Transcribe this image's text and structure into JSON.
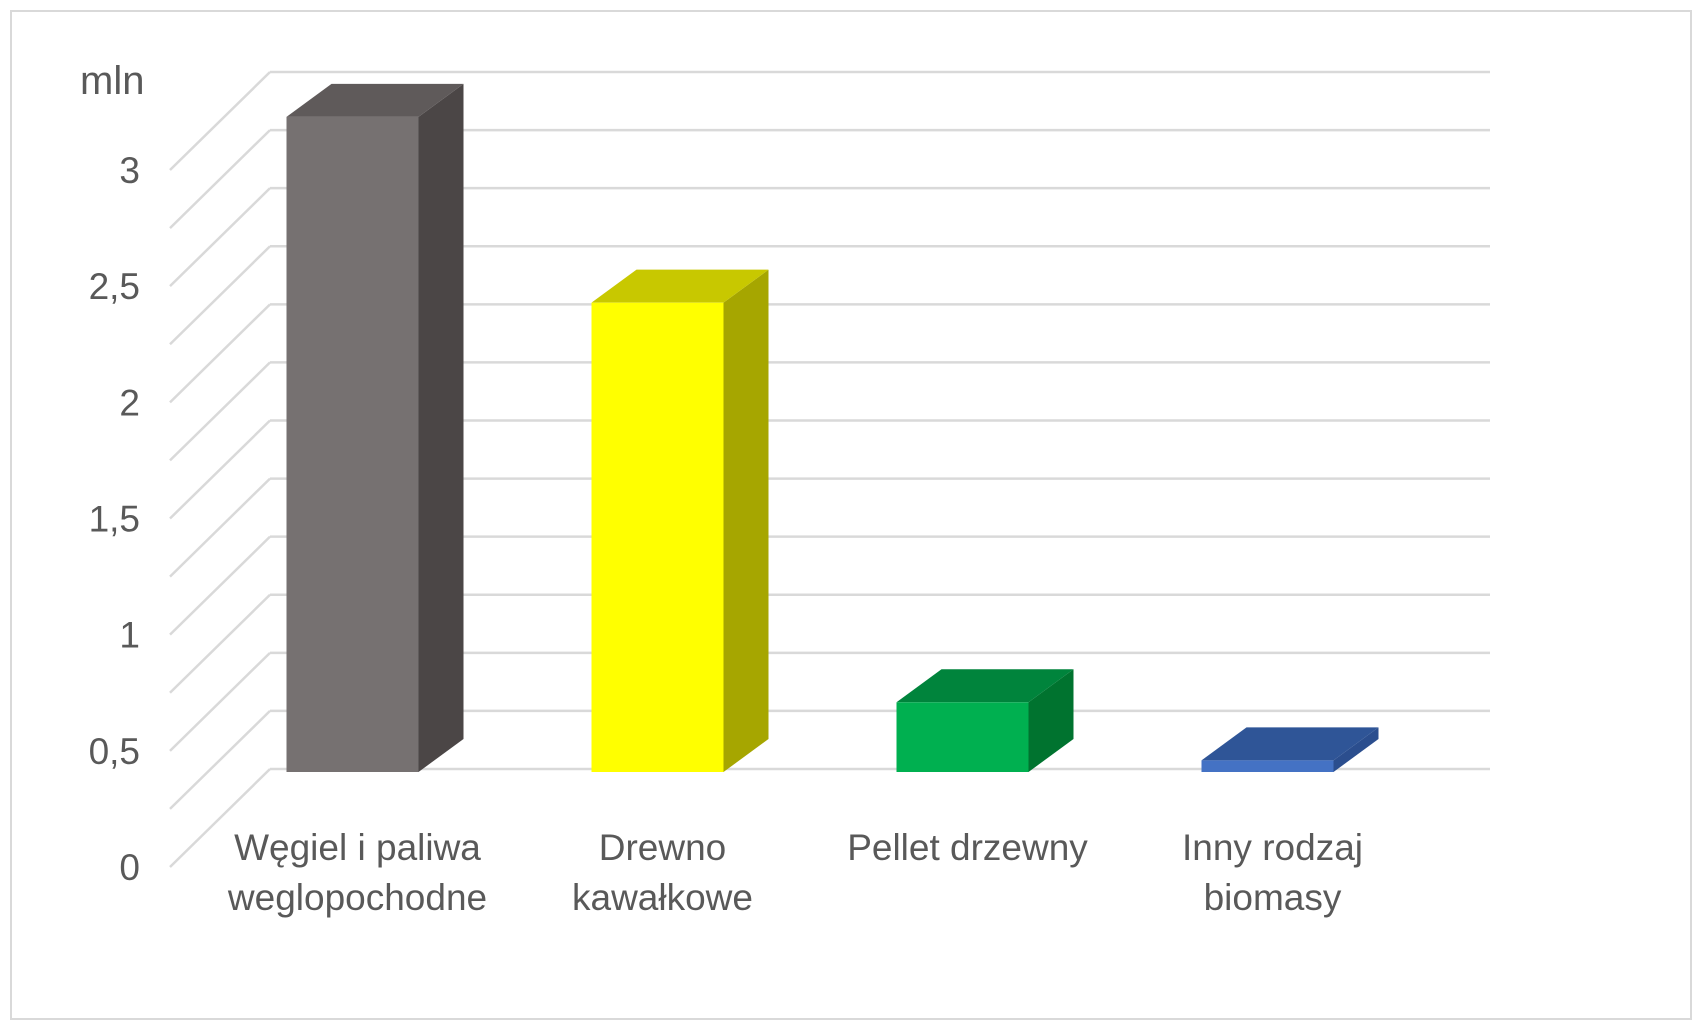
{
  "chart_data": {
    "type": "bar",
    "title": "",
    "unit_label": "mln",
    "xlabel": "",
    "ylabel": "",
    "ylim": [
      0,
      3
    ],
    "y_ticks": [
      "0",
      "0,5",
      "1",
      "1,5",
      "2",
      "2,5",
      "3"
    ],
    "categories": [
      [
        "Węgiel i paliwa",
        "weglopochodne"
      ],
      [
        "Drewno",
        "kawałkowe"
      ],
      [
        "Pellet drzewny"
      ],
      [
        "Inny rodzaj",
        "biomasy"
      ]
    ],
    "values": [
      2.82,
      2.02,
      0.3,
      0.05
    ],
    "colors": [
      {
        "front": "#767171",
        "side": "#4b4646",
        "top": "#5f5a5a"
      },
      {
        "front": "#ffff00",
        "side": "#a6a600",
        "top": "#c8c800"
      },
      {
        "front": "#00b050",
        "side": "#00732f",
        "top": "#00843c"
      },
      {
        "front": "#4472c4",
        "side": "#2b4e8e",
        "top": "#2f5597"
      }
    ],
    "grid": true,
    "style": "3d-column",
    "legend": "none"
  }
}
